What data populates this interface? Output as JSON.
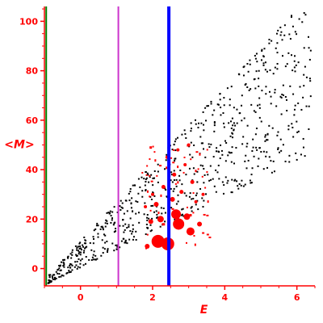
{
  "chart_data": {
    "type": "scatter",
    "xlabel": "E",
    "ylabel": "<M>",
    "xlim": [
      -1.0,
      6.5
    ],
    "ylim": [
      -7,
      106
    ],
    "x_ticks": [
      0,
      2,
      4,
      6
    ],
    "y_ticks": [
      0,
      20,
      40,
      60,
      80,
      100
    ],
    "tick_labels_x": [
      "0",
      "2",
      "4",
      "6"
    ],
    "tick_labels_y": [
      "0",
      "20",
      "40",
      "60",
      "80",
      "100"
    ],
    "grid": false,
    "colors": {
      "axis": "#ff0000",
      "points": "#000000",
      "highlight": "#ff0000"
    },
    "vertical_lines": [
      {
        "x": -0.95,
        "color": "#008000",
        "width": 2
      },
      {
        "x": 1.05,
        "color": "#cc33cc",
        "width": 2
      },
      {
        "x": 2.45,
        "color": "#0000ff",
        "width": 4
      }
    ],
    "band": {
      "x_start": -0.9,
      "x_end": 6.4,
      "upper": {
        "start": -3,
        "slope": 15.6
      },
      "lower": {
        "start": -6,
        "slope": 7.2
      },
      "count": 720,
      "color": "#000000"
    },
    "highlight_points": [
      {
        "x": 2.15,
        "y": 11,
        "size": 8
      },
      {
        "x": 2.42,
        "y": 10,
        "size": 8
      },
      {
        "x": 2.72,
        "y": 18,
        "size": 7
      },
      {
        "x": 2.65,
        "y": 22,
        "size": 6
      },
      {
        "x": 3.05,
        "y": 15,
        "size": 5
      },
      {
        "x": 2.95,
        "y": 21,
        "size": 4
      },
      {
        "x": 2.22,
        "y": 20,
        "size": 4
      },
      {
        "x": 1.85,
        "y": 9,
        "size": 3
      },
      {
        "x": 3.3,
        "y": 18,
        "size": 3
      },
      {
        "x": 1.95,
        "y": 19,
        "size": 3
      },
      {
        "x": 2.1,
        "y": 26,
        "size": 3
      },
      {
        "x": 2.55,
        "y": 28,
        "size": 3
      },
      {
        "x": 2.8,
        "y": 31,
        "size": 2.5
      },
      {
        "x": 2.3,
        "y": 33,
        "size": 2.5
      },
      {
        "x": 3.1,
        "y": 35,
        "size": 2.5
      },
      {
        "x": 2.6,
        "y": 38,
        "size": 2.5
      },
      {
        "x": 2.9,
        "y": 42,
        "size": 2
      },
      {
        "x": 3.2,
        "y": 27,
        "size": 2
      },
      {
        "x": 1.8,
        "y": 25,
        "size": 2
      },
      {
        "x": 2.0,
        "y": 30,
        "size": 2
      },
      {
        "x": 3.4,
        "y": 30,
        "size": 2
      },
      {
        "x": 2.4,
        "y": 45,
        "size": 2
      },
      {
        "x": 2.7,
        "y": 48,
        "size": 2
      },
      {
        "x": 3.0,
        "y": 50,
        "size": 2
      }
    ],
    "highlight_small_count": 60
  }
}
